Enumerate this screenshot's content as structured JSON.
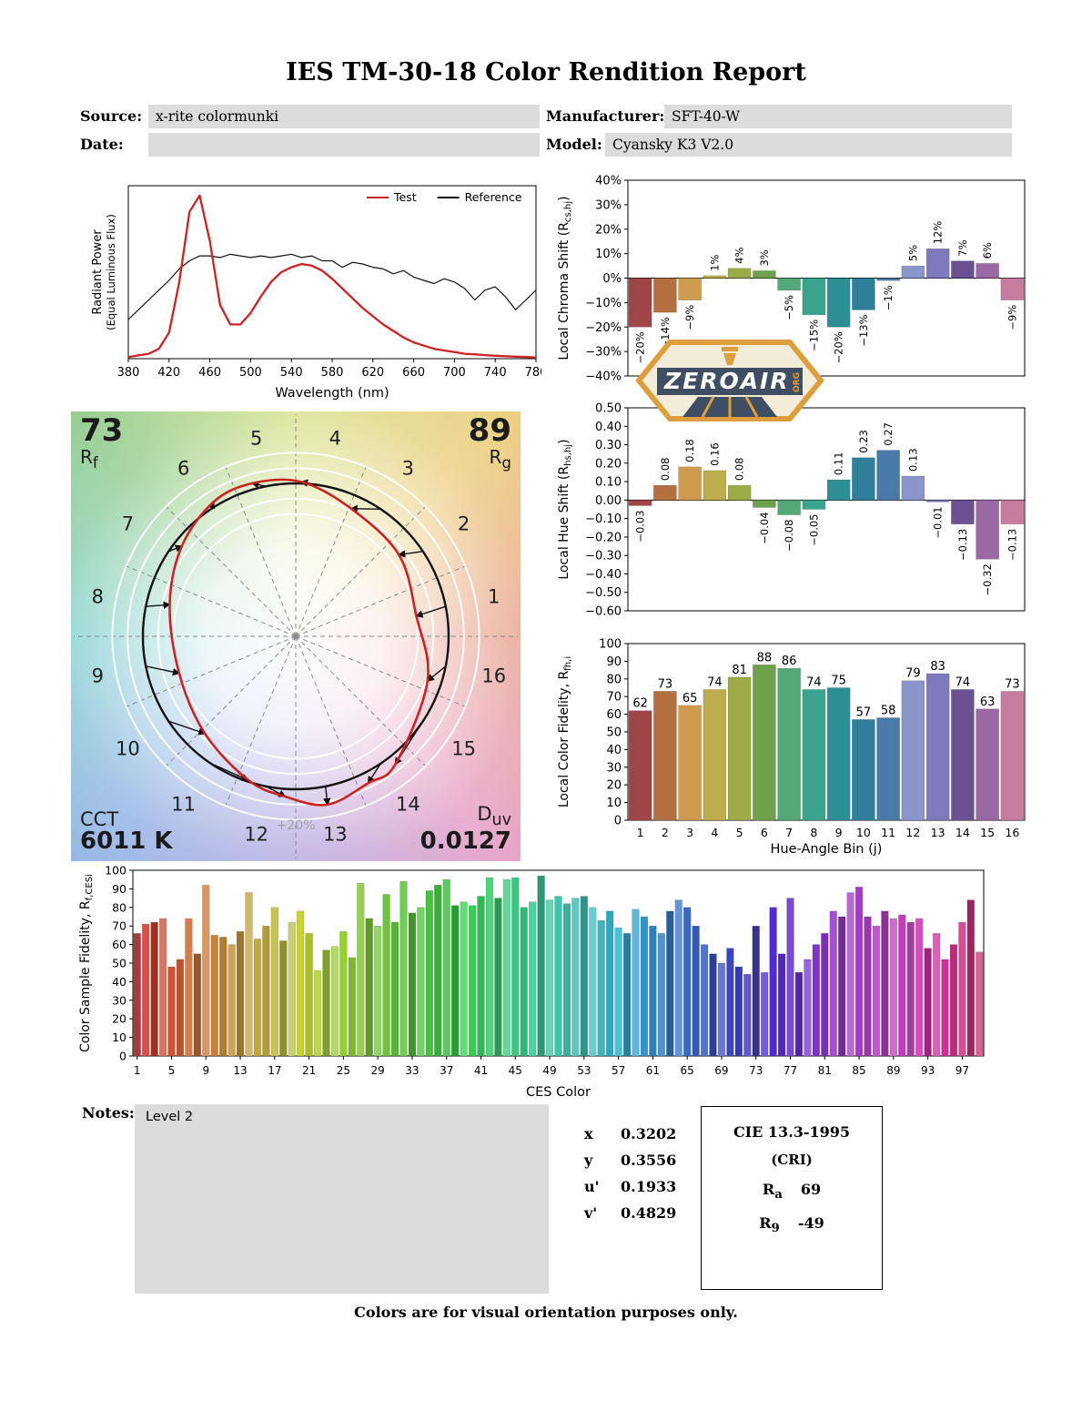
{
  "title": "IES TM-30-18 Color Rendition Report",
  "header": {
    "source_label": "Source:",
    "source_value": "x-rite colormunki",
    "manufacturer_label": "Manufacturer:",
    "manufacturer_value": "SFT-40-W",
    "date_label": "Date:",
    "date_value": "",
    "model_label": "Model:",
    "model_value": "Cyansky K3 V2.0"
  },
  "watermark": {
    "text": "ZEROAIR",
    "suffix": "ORG"
  },
  "bin_colors": [
    "#a04548",
    "#b5703f",
    "#cf9b50",
    "#bcae4e",
    "#9cab47",
    "#6fa04b",
    "#52a877",
    "#3aa48e",
    "#2d8e95",
    "#2f7f9b",
    "#4a7aa8",
    "#8a95cb",
    "#7f79bd",
    "#6b5191",
    "#9a68a3",
    "#c77b9e"
  ],
  "cvg": {
    "rf_value": "73",
    "rf_main": "R",
    "rf_sub": "f",
    "rg_value": "89",
    "rg_main": "R",
    "rg_sub": "g",
    "cct_label": "CCT",
    "cct_value": "6011 K",
    "duv_main": "D",
    "duv_sub": "uv",
    "duv_value": "0.0127",
    "ring_label": "+20%",
    "bin_labels": [
      "1",
      "2",
      "3",
      "4",
      "5",
      "6",
      "7",
      "8",
      "9",
      "10",
      "11",
      "12",
      "13",
      "14",
      "15",
      "16"
    ],
    "test_color": "#cc2222",
    "reference_color": "#111111"
  },
  "chart_data": [
    {
      "id": "spd",
      "type": "line",
      "xlabel": "Wavelength (nm)",
      "ylabel_lines": [
        "Radiant Power",
        "(Equal Luminous Flux)"
      ],
      "xlim": [
        380,
        780
      ],
      "ylim": [
        0,
        1.06
      ],
      "xticks": [
        380,
        420,
        460,
        500,
        540,
        580,
        620,
        660,
        700,
        740,
        780
      ],
      "x": [
        380,
        390,
        400,
        410,
        420,
        430,
        440,
        450,
        460,
        470,
        480,
        490,
        500,
        510,
        520,
        530,
        540,
        550,
        560,
        570,
        580,
        590,
        600,
        610,
        620,
        630,
        640,
        650,
        660,
        670,
        680,
        690,
        700,
        710,
        720,
        730,
        740,
        750,
        760,
        770,
        780
      ],
      "series": [
        {
          "name": "Test",
          "color": "#cc2222",
          "y": [
            0.01,
            0.02,
            0.03,
            0.06,
            0.16,
            0.47,
            0.9,
            1.0,
            0.72,
            0.33,
            0.21,
            0.21,
            0.28,
            0.38,
            0.47,
            0.53,
            0.56,
            0.58,
            0.57,
            0.54,
            0.49,
            0.43,
            0.37,
            0.31,
            0.26,
            0.21,
            0.17,
            0.13,
            0.1,
            0.08,
            0.06,
            0.05,
            0.04,
            0.03,
            0.027,
            0.022,
            0.018,
            0.015,
            0.012,
            0.01,
            0.008
          ]
        },
        {
          "name": "Reference",
          "color": "#111111",
          "y": [
            0.24,
            0.3,
            0.36,
            0.42,
            0.48,
            0.55,
            0.6,
            0.63,
            0.63,
            0.62,
            0.64,
            0.63,
            0.62,
            0.63,
            0.62,
            0.63,
            0.64,
            0.62,
            0.63,
            0.6,
            0.6,
            0.56,
            0.59,
            0.58,
            0.56,
            0.55,
            0.52,
            0.54,
            0.5,
            0.48,
            0.46,
            0.49,
            0.47,
            0.43,
            0.36,
            0.42,
            0.44,
            0.38,
            0.3,
            0.36,
            0.42
          ]
        }
      ]
    },
    {
      "id": "local_chroma_shift",
      "type": "bar",
      "ylabel_parts": [
        "Local Chroma Shift (R",
        "cs,hj",
        ")"
      ],
      "ylim": [
        -40,
        40
      ],
      "ytick_values": [
        40,
        30,
        20,
        10,
        0,
        -10,
        -20,
        -30,
        -40
      ],
      "ytick_labels": [
        "40%",
        "30%",
        "20%",
        "10%",
        "0%",
        "−10%",
        "−20%",
        "−30%",
        "−40%"
      ],
      "categories": [
        1,
        2,
        3,
        4,
        5,
        6,
        7,
        8,
        9,
        10,
        11,
        12,
        13,
        14,
        15,
        16
      ],
      "values": [
        -20,
        -14,
        -9,
        1,
        4,
        3,
        -5,
        -15,
        -20,
        -13,
        -1,
        5,
        12,
        7,
        6,
        -9
      ],
      "value_labels": [
        "−20%",
        "−14%",
        "−9%",
        "1%",
        "4%",
        "3%",
        "−5%",
        "−15%",
        "−20%",
        "−13%",
        "−1%",
        "5%",
        "12%",
        "7%",
        "6%",
        "−9%"
      ]
    },
    {
      "id": "local_hue_shift",
      "type": "bar",
      "ylabel_parts": [
        "Local Hue Shift (R",
        "hs,hj",
        ")"
      ],
      "ylim": [
        -0.6,
        0.5
      ],
      "ytick_values": [
        0.5,
        0.4,
        0.3,
        0.2,
        0.1,
        0,
        -0.1,
        -0.2,
        -0.3,
        -0.4,
        -0.5,
        -0.6
      ],
      "ytick_labels": [
        "0.50",
        "0.40",
        "0.30",
        "0.20",
        "0.10",
        "0.00",
        "−0.10",
        "−0.20",
        "−0.30",
        "−0.40",
        "−0.50",
        "−0.60"
      ],
      "categories": [
        1,
        2,
        3,
        4,
        5,
        6,
        7,
        8,
        9,
        10,
        11,
        12,
        13,
        14,
        15,
        16
      ],
      "values": [
        -0.03,
        0.08,
        0.18,
        0.16,
        0.08,
        -0.04,
        -0.08,
        -0.05,
        0.11,
        0.23,
        0.27,
        0.13,
        -0.01,
        -0.13,
        -0.32,
        -0.13
      ],
      "value_labels": [
        "−0.03",
        "0.08",
        "0.18",
        "0.16",
        "0.08",
        "−0.04",
        "−0.08",
        "−0.05",
        "0.11",
        "0.23",
        "0.27",
        "0.13",
        "−0.01",
        "−0.13",
        "−0.32",
        "−0.13"
      ]
    },
    {
      "id": "local_color_fidelity",
      "type": "bar",
      "xlabel": "Hue-Angle Bin (j)",
      "ylabel_parts": [
        "Local Color Fidelity, R",
        "fh,i",
        ""
      ],
      "ylim": [
        0,
        100
      ],
      "ytick_values": [
        100,
        90,
        80,
        70,
        60,
        50,
        40,
        30,
        20,
        10,
        0
      ],
      "ytick_labels": [
        "100",
        "90",
        "80",
        "70",
        "60",
        "50",
        "40",
        "30",
        "20",
        "10",
        "0"
      ],
      "categories": [
        1,
        2,
        3,
        4,
        5,
        6,
        7,
        8,
        9,
        10,
        11,
        12,
        13,
        14,
        15,
        16
      ],
      "xticks": [
        "1",
        "2",
        "3",
        "4",
        "5",
        "6",
        "7",
        "8",
        "9",
        "10",
        "11",
        "12",
        "13",
        "14",
        "15",
        "16"
      ],
      "values": [
        62,
        73,
        65,
        74,
        81,
        88,
        86,
        74,
        75,
        57,
        58,
        79,
        83,
        74,
        63,
        73
      ],
      "value_labels": [
        "62",
        "73",
        "65",
        "74",
        "81",
        "88",
        "86",
        "74",
        "75",
        "57",
        "58",
        "79",
        "83",
        "74",
        "63",
        "73"
      ]
    },
    {
      "id": "ces_fidelity",
      "type": "bar",
      "xlabel": "CES Color",
      "ylabel_parts": [
        "Color Sample Fidelity, R",
        "f,CESi",
        ""
      ],
      "ylim": [
        0,
        100
      ],
      "ytick_values": [
        100,
        90,
        80,
        70,
        60,
        50,
        40,
        30,
        20,
        10,
        0
      ],
      "ytick_labels": [
        "100",
        "90",
        "80",
        "70",
        "60",
        "50",
        "40",
        "30",
        "20",
        "10",
        "0"
      ],
      "xticks": [
        "1",
        "5",
        "9",
        "13",
        "17",
        "21",
        "25",
        "29",
        "33",
        "37",
        "41",
        "45",
        "49",
        "53",
        "57",
        "61",
        "65",
        "69",
        "73",
        "77",
        "81",
        "85",
        "89",
        "93",
        "97"
      ],
      "values": [
        66,
        71,
        72,
        74,
        48,
        52,
        74,
        55,
        92,
        65,
        64,
        60,
        67,
        88,
        63,
        70,
        80,
        62,
        72,
        78,
        66,
        46,
        57,
        59,
        67,
        53,
        93,
        74,
        70,
        87,
        72,
        94,
        77,
        80,
        89,
        92,
        95,
        81,
        83,
        81,
        86,
        96,
        85,
        95,
        96,
        80,
        83,
        97,
        84,
        86,
        82,
        85,
        86,
        80,
        73,
        78,
        69,
        66,
        79,
        75,
        70,
        66,
        78,
        84,
        80,
        70,
        60,
        55,
        50,
        58,
        48,
        44,
        70,
        45,
        80,
        55,
        85,
        45,
        52,
        60,
        66,
        78,
        75,
        88,
        91,
        75,
        70,
        78,
        74,
        76,
        72,
        74,
        58,
        66,
        52,
        60,
        72,
        84,
        56
      ]
    }
  ],
  "notes": {
    "label": "Notes:",
    "value": "Level 2"
  },
  "chromaticity": {
    "rows": [
      {
        "label": "x",
        "value": "0.3202"
      },
      {
        "label": "y",
        "value": "0.3556"
      },
      {
        "label": "u'",
        "value": "0.1933"
      },
      {
        "label": "v'",
        "value": "0.4829"
      }
    ]
  },
  "cie_box": {
    "title": "CIE 13.3-1995",
    "subtitle": "(CRI)",
    "ra_main": "R",
    "ra_sub": "a",
    "ra_value": "69",
    "r9_main": "R",
    "r9_sub": "9",
    "r9_value": "-49"
  },
  "footer": "Colors are for visual orientation purposes only."
}
